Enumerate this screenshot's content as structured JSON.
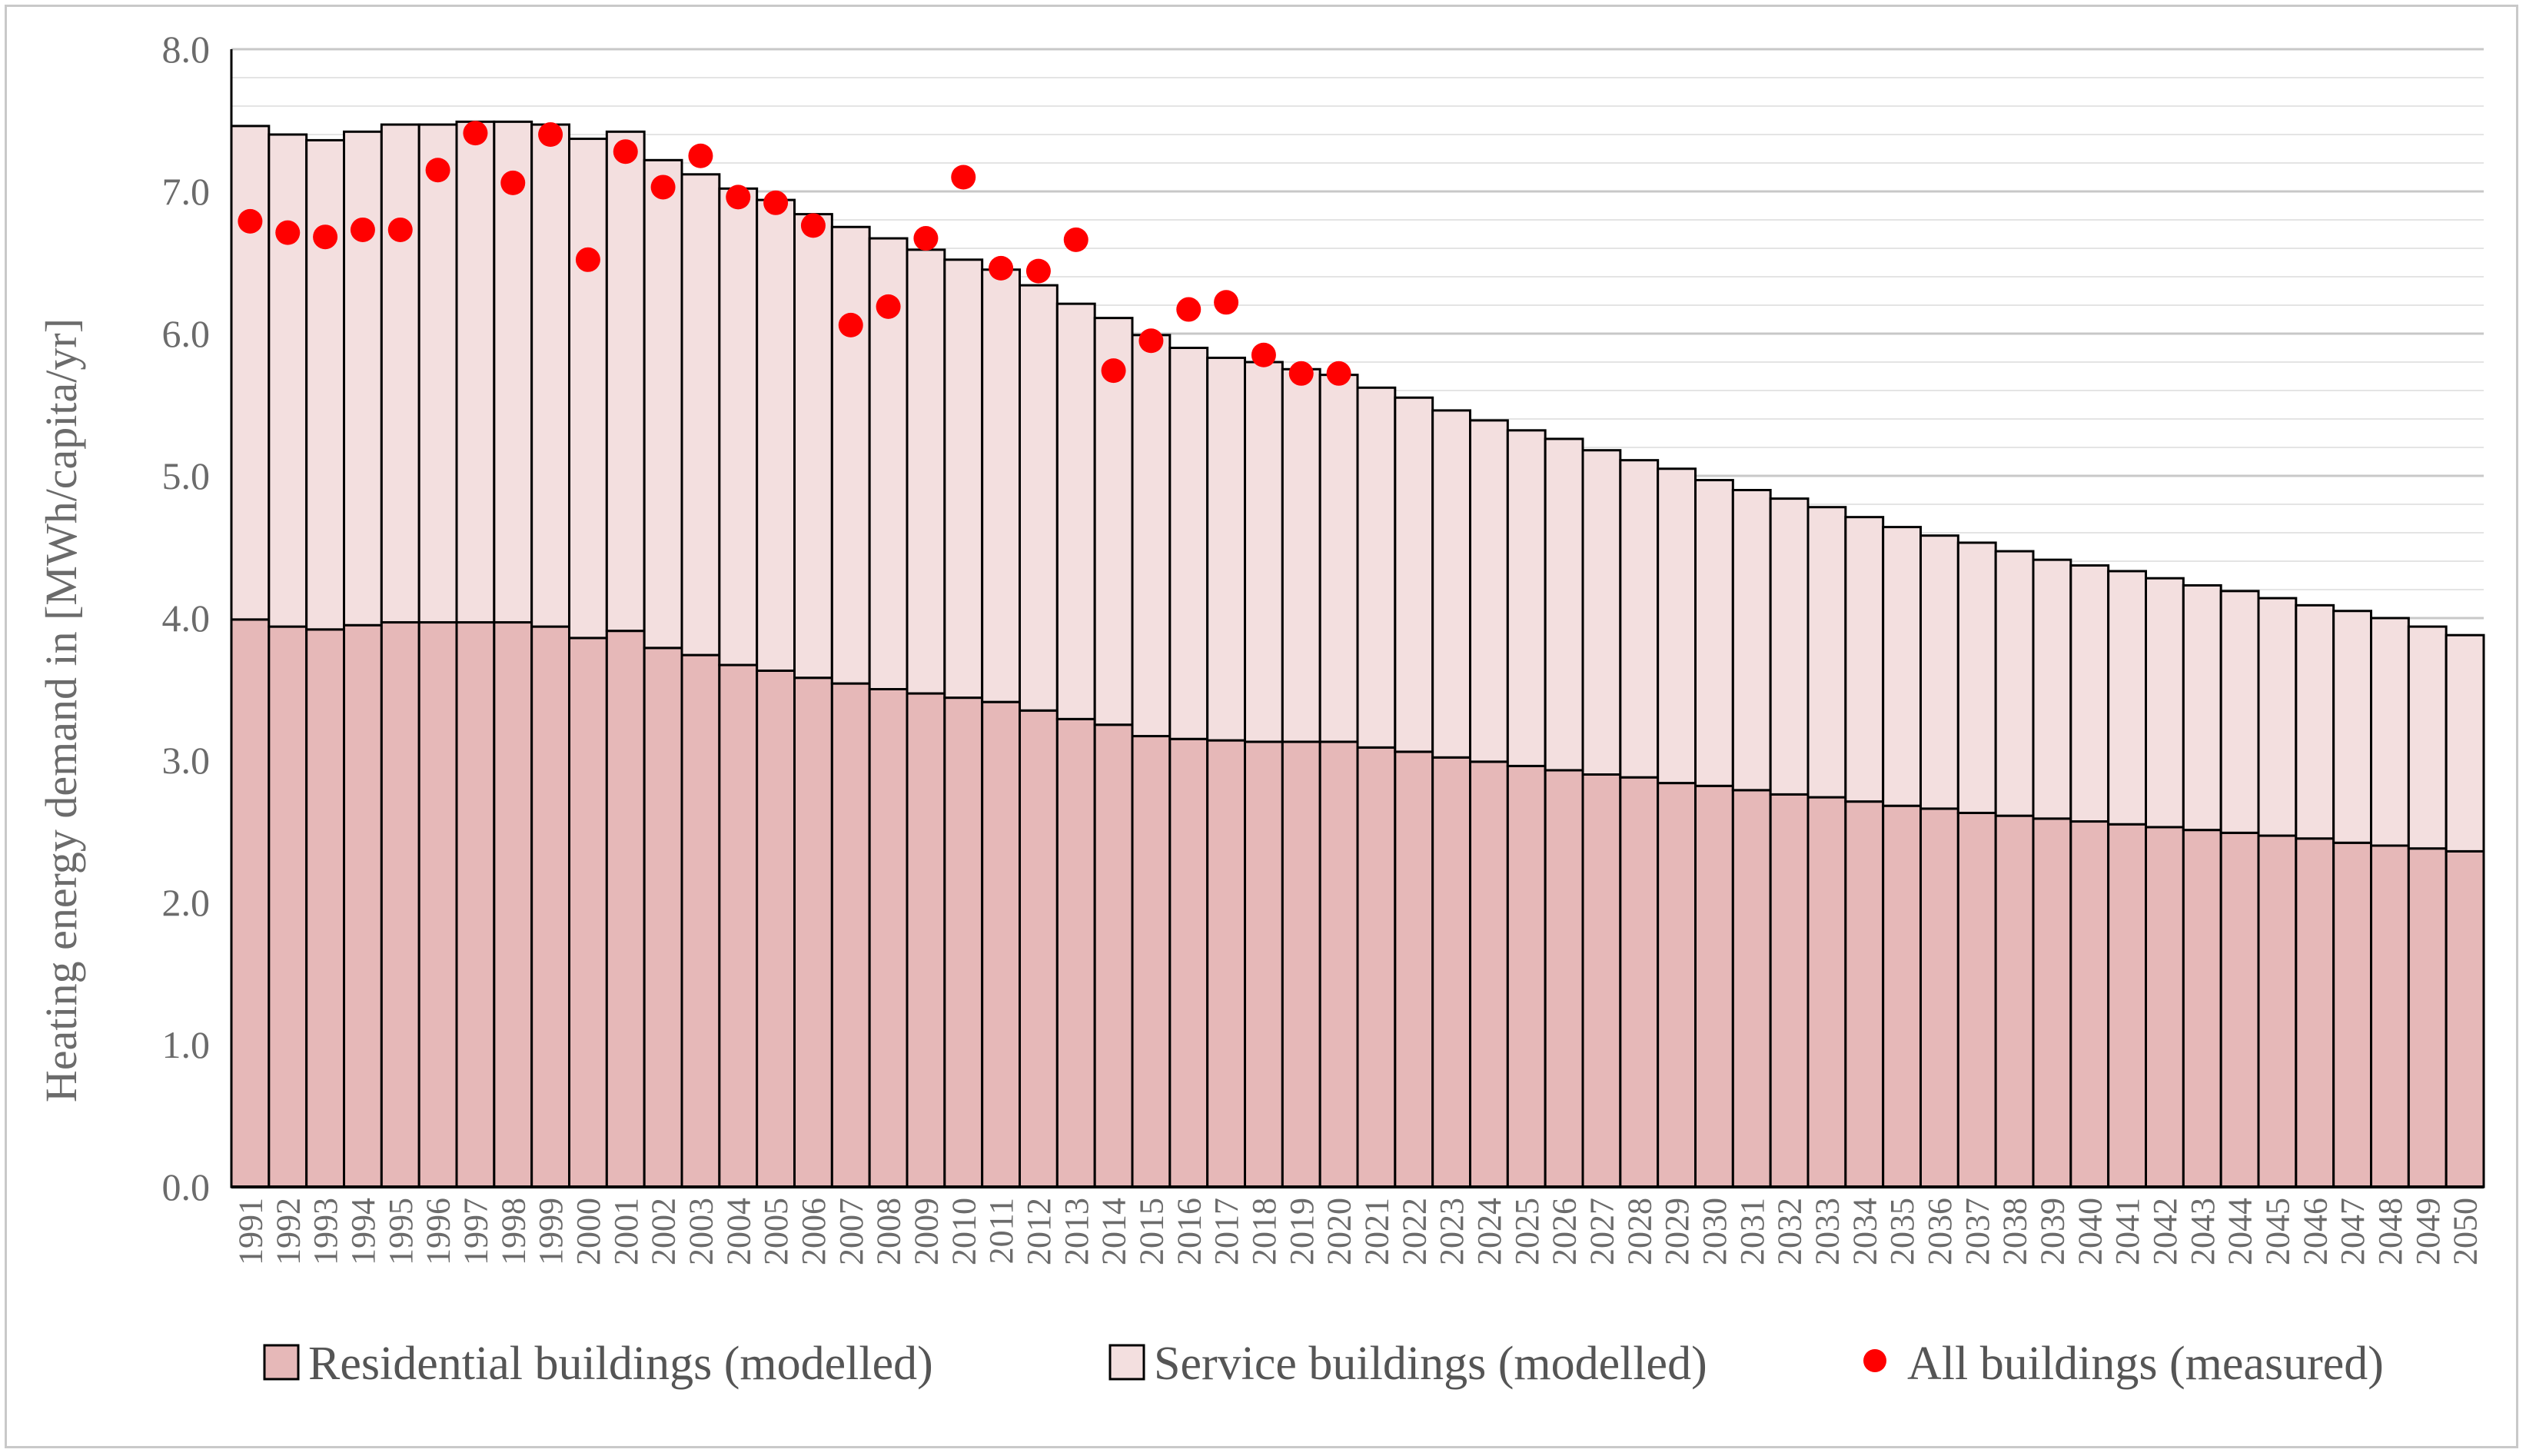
{
  "chart_data": {
    "type": "bar",
    "stacked": true,
    "title": "",
    "xlabel": "",
    "ylabel": "Heating energy demand in [MWh/capita/yr]",
    "ylim": [
      0,
      8
    ],
    "yticks": [
      "0.0",
      "1.0",
      "2.0",
      "3.0",
      "4.0",
      "5.0",
      "6.0",
      "7.0",
      "8.0"
    ],
    "grid": "horizontal",
    "legend_position": "bottom",
    "categories": [
      "1991",
      "1992",
      "1993",
      "1994",
      "1995",
      "1996",
      "1997",
      "1998",
      "1999",
      "2000",
      "2001",
      "2002",
      "2003",
      "2004",
      "2005",
      "2006",
      "2007",
      "2008",
      "2009",
      "2010",
      "2011",
      "2012",
      "2013",
      "2014",
      "2015",
      "2016",
      "2017",
      "2018",
      "2019",
      "2020",
      "2021",
      "2022",
      "2023",
      "2024",
      "2025",
      "2026",
      "2027",
      "2028",
      "2029",
      "2030",
      "2031",
      "2032",
      "2033",
      "2034",
      "2035",
      "2036",
      "2037",
      "2038",
      "2039",
      "2040",
      "2041",
      "2042",
      "2043",
      "2044",
      "2045",
      "2046",
      "2047",
      "2048",
      "2049",
      "2050"
    ],
    "series": [
      {
        "name": "Residential buildings (modelled)",
        "kind": "bar",
        "color": "#e6b8b8",
        "values": [
          3.99,
          3.94,
          3.92,
          3.95,
          3.97,
          3.97,
          3.97,
          3.97,
          3.94,
          3.86,
          3.91,
          3.79,
          3.74,
          3.67,
          3.63,
          3.58,
          3.54,
          3.5,
          3.47,
          3.44,
          3.41,
          3.35,
          3.29,
          3.25,
          3.17,
          3.15,
          3.14,
          3.13,
          3.13,
          3.13,
          3.09,
          3.06,
          3.02,
          2.99,
          2.96,
          2.93,
          2.9,
          2.88,
          2.84,
          2.82,
          2.79,
          2.76,
          2.74,
          2.71,
          2.68,
          2.66,
          2.63,
          2.61,
          2.59,
          2.57,
          2.55,
          2.53,
          2.51,
          2.49,
          2.47,
          2.45,
          2.42,
          2.4,
          2.38,
          2.36
        ]
      },
      {
        "name": "Service buildings (modelled)",
        "kind": "bar",
        "color": "#f3dfdf",
        "values": [
          3.47,
          3.46,
          3.44,
          3.47,
          3.5,
          3.5,
          3.52,
          3.52,
          3.53,
          3.51,
          3.51,
          3.43,
          3.38,
          3.35,
          3.31,
          3.26,
          3.21,
          3.17,
          3.12,
          3.08,
          3.04,
          2.99,
          2.92,
          2.86,
          2.82,
          2.75,
          2.69,
          2.67,
          2.62,
          2.58,
          2.53,
          2.49,
          2.44,
          2.4,
          2.36,
          2.33,
          2.28,
          2.23,
          2.21,
          2.15,
          2.11,
          2.08,
          2.04,
          2.0,
          1.96,
          1.92,
          1.9,
          1.86,
          1.82,
          1.8,
          1.78,
          1.75,
          1.72,
          1.7,
          1.67,
          1.64,
          1.63,
          1.6,
          1.56,
          1.52
        ]
      },
      {
        "name": "All buildings (measured)",
        "kind": "scatter",
        "color": "#ff0000",
        "x": [
          "1991",
          "1992",
          "1993",
          "1994",
          "1995",
          "1996",
          "1997",
          "1998",
          "1999",
          "2000",
          "2001",
          "2002",
          "2003",
          "2004",
          "2005",
          "2006",
          "2007",
          "2008",
          "2009",
          "2010",
          "2011",
          "2012",
          "2013",
          "2014",
          "2015",
          "2016",
          "2017",
          "2018",
          "2019",
          "2020"
        ],
        "values": [
          6.79,
          6.71,
          6.68,
          6.73,
          6.73,
          7.15,
          7.41,
          7.06,
          7.4,
          6.52,
          7.28,
          7.03,
          7.25,
          6.96,
          6.92,
          6.76,
          6.06,
          6.19,
          6.67,
          7.1,
          6.46,
          6.44,
          6.66,
          5.74,
          5.95,
          6.17,
          6.22,
          5.85,
          5.72,
          5.72
        ]
      }
    ]
  }
}
